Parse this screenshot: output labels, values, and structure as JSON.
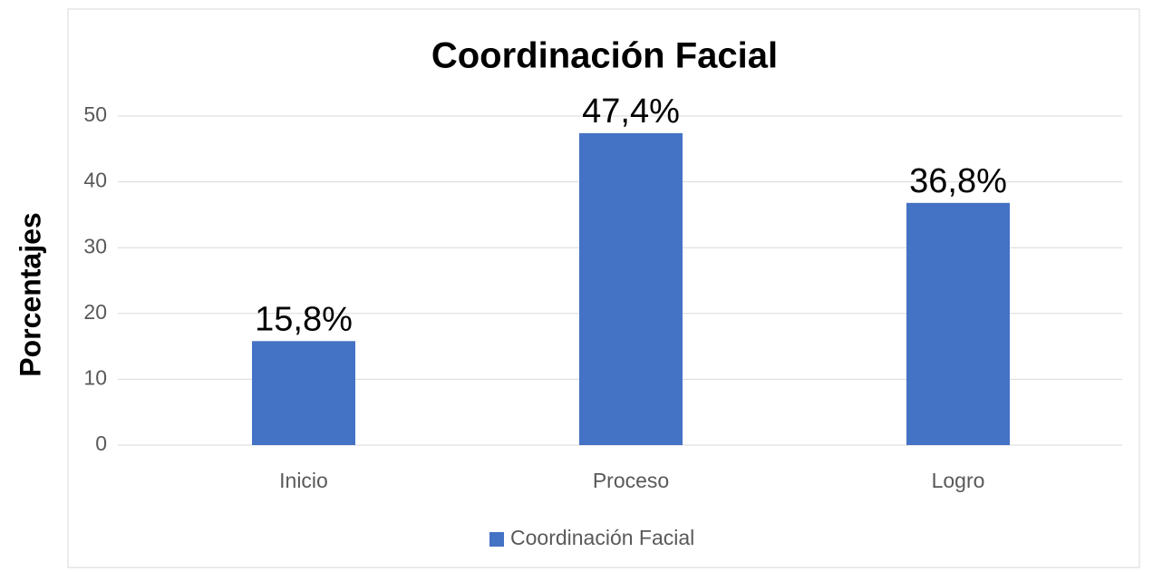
{
  "chart_data": {
    "type": "bar",
    "title": "Coordinación Facial",
    "y_label": "Porcentajes",
    "categories": [
      "Inicio",
      "Proceso",
      "Logro"
    ],
    "series": [
      {
        "name": "Coordinación Facial",
        "color": "#4472c4",
        "values": [
          15.8,
          47.4,
          36.8
        ],
        "value_labels": [
          "15,8%",
          "47,4%",
          "36,8%"
        ]
      }
    ],
    "ylim": [
      0,
      50
    ],
    "yticks": [
      0,
      10,
      20,
      30,
      40,
      50
    ],
    "grid": true,
    "legend": "bottom"
  }
}
